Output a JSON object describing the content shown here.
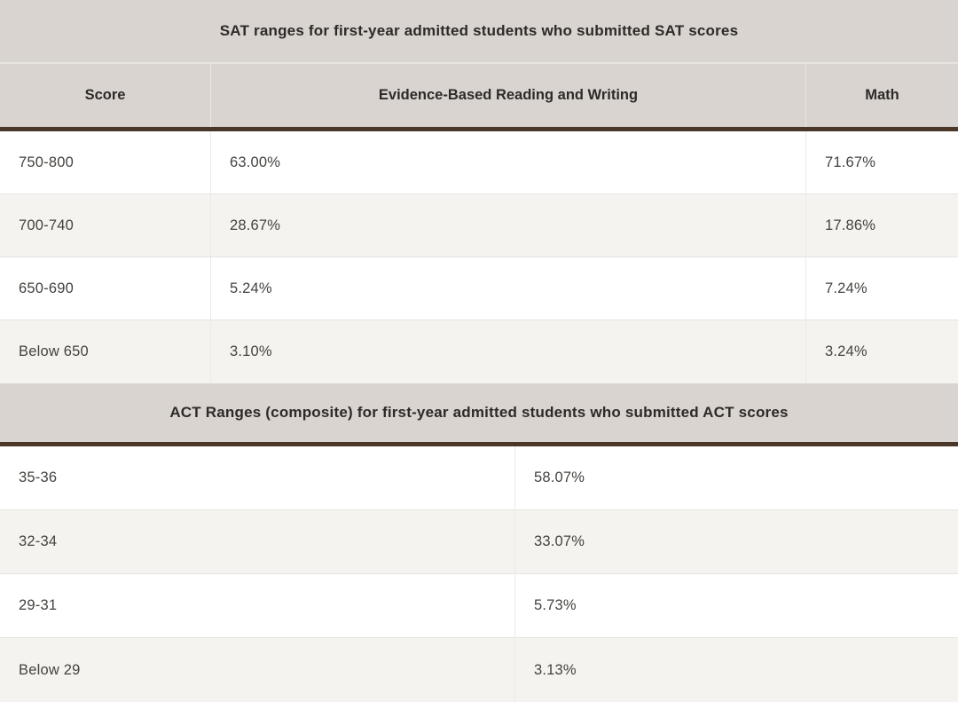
{
  "colors": {
    "title_bar_bg": "#d9d4d0",
    "accent_rule": "#4a3728",
    "alt_row_bg": "#f4f3f0",
    "row_divider": "#e7e4e1",
    "heading_text": "#2d2a27",
    "body_text": "#45423f"
  },
  "sat_table": {
    "title": "SAT ranges for first-year admitted students who submitted SAT scores",
    "columns": [
      "Score",
      "Evidence-Based Reading and Writing",
      "Math"
    ],
    "rows": [
      {
        "score": "750-800",
        "ebrw": "63.00%",
        "math": "71.67%"
      },
      {
        "score": "700-740",
        "ebrw": "28.67%",
        "math": "17.86%"
      },
      {
        "score": "650-690",
        "ebrw": "5.24%",
        "math": "7.24%"
      },
      {
        "score": "Below 650",
        "ebrw": "3.10%",
        "math": "3.24%"
      }
    ]
  },
  "act_table": {
    "title": "ACT Ranges (composite) for first-year admitted students who submitted ACT scores",
    "rows": [
      {
        "range": "35-36",
        "pct": "58.07%"
      },
      {
        "range": "32-34",
        "pct": "33.07%"
      },
      {
        "range": "29-31",
        "pct": "5.73%"
      },
      {
        "range": "Below 29",
        "pct": "3.13%"
      }
    ]
  },
  "chart_data": [
    {
      "type": "table",
      "title": "SAT ranges for first-year admitted students who submitted SAT scores",
      "columns": [
        "Score",
        "Evidence-Based Reading and Writing",
        "Math"
      ],
      "rows": [
        [
          "750-800",
          "63.00%",
          "71.67%"
        ],
        [
          "700-740",
          "28.67%",
          "17.86%"
        ],
        [
          "650-690",
          "5.24%",
          "7.24%"
        ],
        [
          "Below 650",
          "3.10%",
          "3.24%"
        ]
      ]
    },
    {
      "type": "table",
      "title": "ACT Ranges (composite) for first-year admitted students who submitted ACT scores",
      "columns": [],
      "rows": [
        [
          "35-36",
          "58.07%"
        ],
        [
          "32-34",
          "33.07%"
        ],
        [
          "29-31",
          "5.73%"
        ],
        [
          "Below 29",
          "3.13%"
        ]
      ]
    }
  ]
}
